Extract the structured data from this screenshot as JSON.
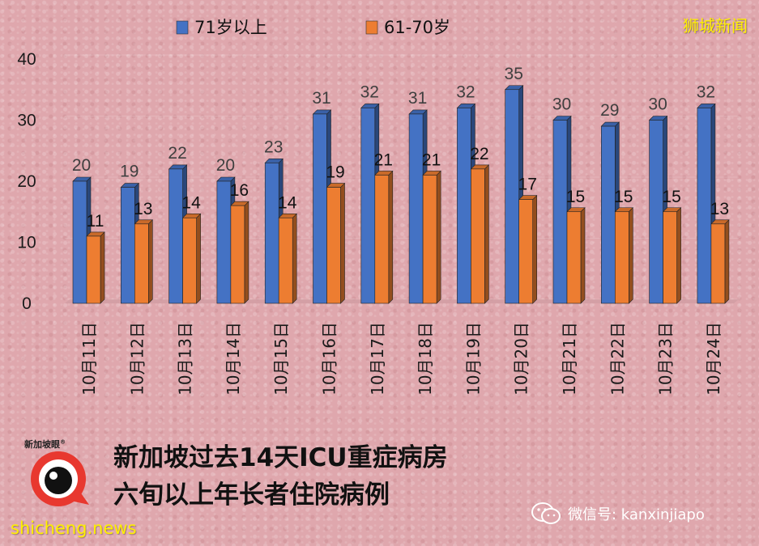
{
  "brand": "狮城新闻",
  "headline": {
    "line1": "新加坡过去14天ICU重症病房",
    "line2": "六旬以上年长者住院病例"
  },
  "logo": {
    "text": "新加坡眼",
    "mark": "®"
  },
  "site": "shicheng.news",
  "wechat": {
    "icon": "wechat-icon",
    "text": "微信号: kanxinjiapo"
  },
  "colors": {
    "blue": "#4472c4",
    "orange": "#ed7d31",
    "brand": "#fff000"
  },
  "chart_data": {
    "type": "bar",
    "categories": [
      "10月11日",
      "10月12日",
      "10月13日",
      "10月14日",
      "10月15日",
      "10月16日",
      "10月17日",
      "10月18日",
      "10月19日",
      "10月20日",
      "10月21日",
      "10月22日",
      "10月23日",
      "10月24日"
    ],
    "series": [
      {
        "name": "71岁以上",
        "values": [
          20,
          19,
          22,
          20,
          23,
          31,
          32,
          31,
          32,
          35,
          30,
          29,
          30,
          32
        ]
      },
      {
        "name": "61-70岁",
        "values": [
          11,
          13,
          14,
          16,
          14,
          19,
          21,
          21,
          22,
          17,
          15,
          15,
          15,
          13
        ]
      }
    ],
    "yticks": [
      "0",
      "10",
      "20",
      "30",
      "40"
    ],
    "ylim": [
      0,
      40
    ],
    "legend_position": "top",
    "grid": false,
    "data_labels": true
  }
}
